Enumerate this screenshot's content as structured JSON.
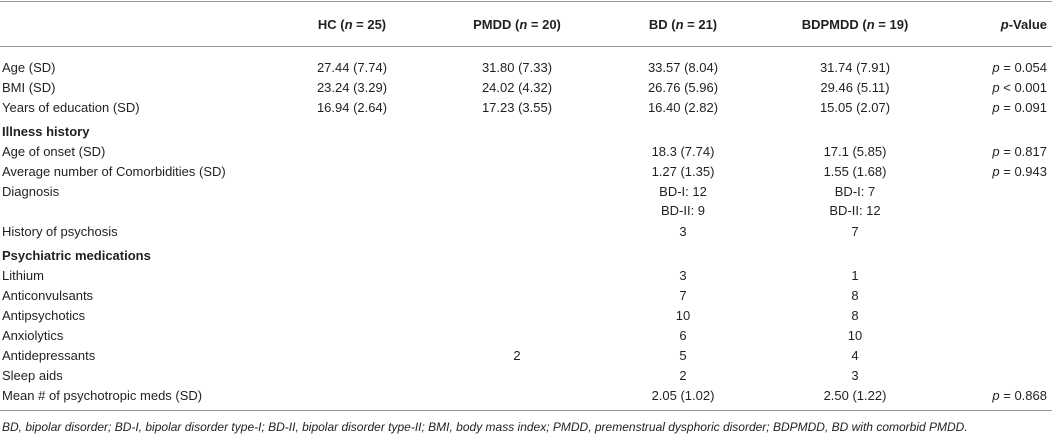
{
  "table": {
    "columns": [
      {
        "parts": [
          {
            "text": "HC ("
          },
          {
            "text": "n",
            "italic": true
          },
          {
            "text": " = 25)"
          }
        ]
      },
      {
        "parts": [
          {
            "text": "PMDD ("
          },
          {
            "text": "n",
            "italic": true
          },
          {
            "text": " = 20)"
          }
        ]
      },
      {
        "parts": [
          {
            "text": "BD ("
          },
          {
            "text": "n",
            "italic": true
          },
          {
            "text": " = 21)"
          }
        ]
      },
      {
        "parts": [
          {
            "text": "BDPMDD ("
          },
          {
            "text": "n",
            "italic": true
          },
          {
            "text": " = 19)"
          }
        ]
      },
      {
        "parts": [
          {
            "text": "p",
            "italic": true
          },
          {
            "text": "-Value"
          }
        ]
      }
    ],
    "rows": [
      {
        "label": "Age (SD)",
        "cells": [
          "27.44 (7.74)",
          "31.80 (7.33)",
          "33.57 (8.04)",
          "31.74 (7.91)"
        ],
        "p": [
          {
            "text": "p",
            "italic": true
          },
          {
            "text": " = 0.054"
          }
        ]
      },
      {
        "label": "BMI (SD)",
        "cells": [
          "23.24 (3.29)",
          "24.02 (4.32)",
          "26.76 (5.96)",
          "29.46 (5.11)"
        ],
        "p": [
          {
            "text": "p",
            "italic": true
          },
          {
            "text": " < 0.001"
          }
        ]
      },
      {
        "label": "Years of education (SD)",
        "cells": [
          "16.94 (2.64)",
          "17.23 (3.55)",
          "16.40 (2.82)",
          "15.05 (2.07)"
        ],
        "p": [
          {
            "text": "p",
            "italic": true
          },
          {
            "text": " = 0.091"
          }
        ]
      },
      {
        "heading": "Illness history"
      },
      {
        "label": "Age of onset (SD)",
        "cells": [
          null,
          null,
          "18.3 (7.74)",
          "17.1 (5.85)"
        ],
        "p": [
          {
            "text": "p",
            "italic": true
          },
          {
            "text": " = 0.817"
          }
        ]
      },
      {
        "label": "Average number of Comorbidities (SD)",
        "cells": [
          null,
          null,
          "1.27 (1.35)",
          "1.55 (1.68)"
        ],
        "p": [
          {
            "text": "p",
            "italic": true
          },
          {
            "text": " = 0.943"
          }
        ]
      },
      {
        "label": "Diagnosis",
        "cells": [
          null,
          null,
          [
            "BD-I: 12",
            "BD-II: 9"
          ],
          [
            "BD-I: 7",
            "BD-II: 12"
          ]
        ]
      },
      {
        "label": "History of psychosis",
        "cells": [
          null,
          null,
          "3",
          "7"
        ]
      },
      {
        "heading": "Psychiatric medications"
      },
      {
        "label": "Lithium",
        "cells": [
          null,
          null,
          "3",
          "1"
        ]
      },
      {
        "label": "Anticonvulsants",
        "cells": [
          null,
          null,
          "7",
          "8"
        ]
      },
      {
        "label": "Antipsychotics",
        "cells": [
          null,
          null,
          "10",
          "8"
        ]
      },
      {
        "label": "Anxiolytics",
        "cells": [
          null,
          null,
          "6",
          "10"
        ]
      },
      {
        "label": "Antidepressants",
        "cells": [
          null,
          "2",
          "5",
          "4"
        ]
      },
      {
        "label": "Sleep aids",
        "cells": [
          null,
          null,
          "2",
          "3"
        ]
      },
      {
        "label": "Mean # of psychotropic meds (SD)",
        "cells": [
          null,
          null,
          "2.05 (1.02)",
          "2.50 (1.22)"
        ],
        "p": [
          {
            "text": "p",
            "italic": true
          },
          {
            "text": " = 0.868"
          }
        ]
      }
    ],
    "footnote": "BD, bipolar disorder; BD-I, bipolar disorder type-I; BD-II, bipolar disorder type-II; BMI, body mass index; PMDD, premenstrual dysphoric disorder; BDPMDD, BD with comorbid PMDD."
  }
}
